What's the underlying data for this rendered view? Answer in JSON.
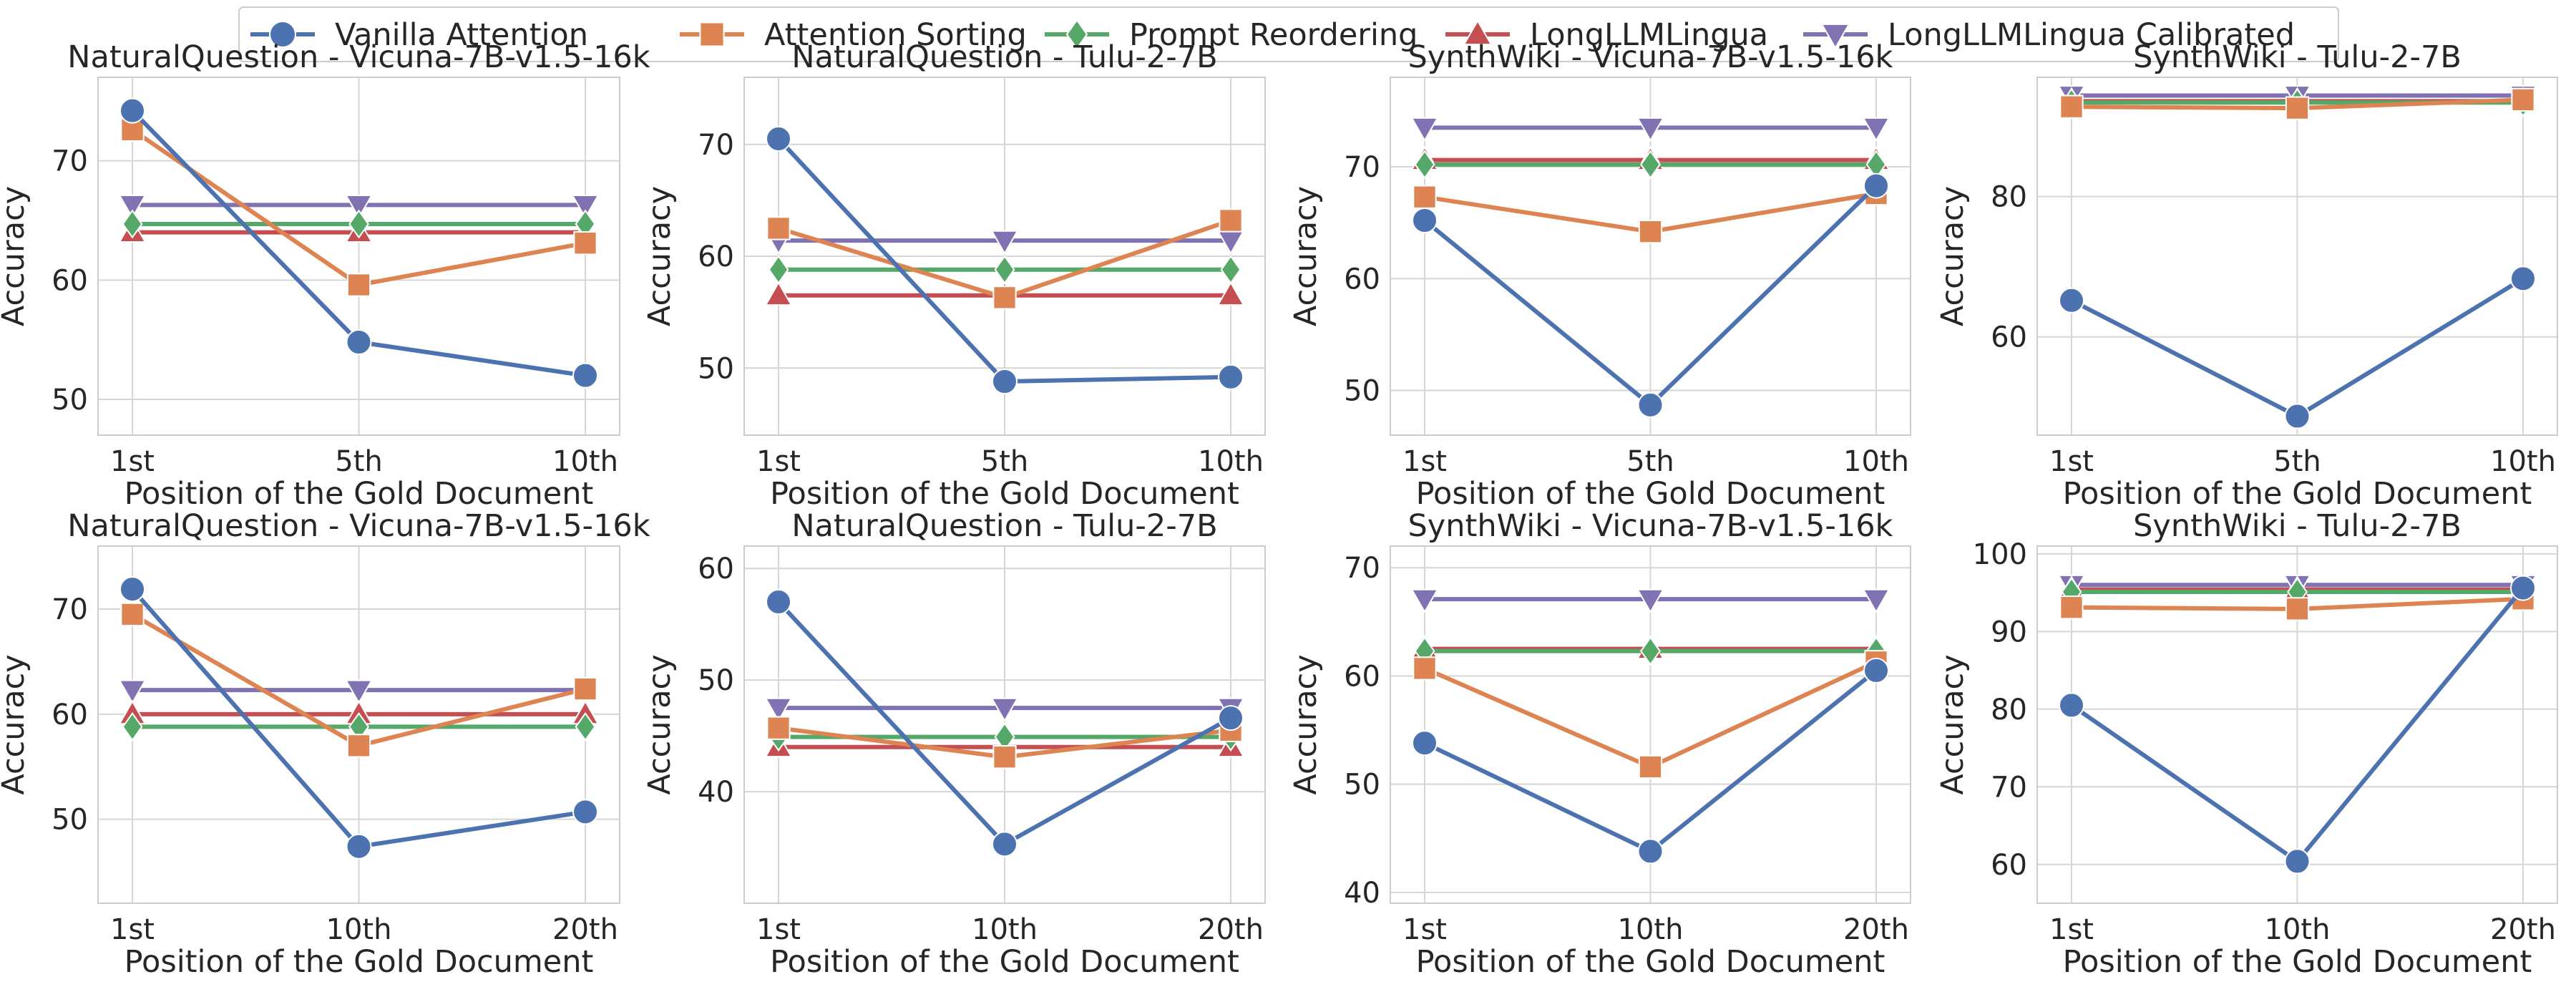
{
  "colors": {
    "Vanilla Attention": "#4c72b0",
    "Attention Sorting": "#dd8452",
    "Prompt Reordering": "#55a868",
    "LongLLMLingua": "#c44e52",
    "LongLLMLingua Calibrated": "#8172b3"
  },
  "legend": [
    {
      "label": "Vanilla Attention",
      "marker": "circle"
    },
    {
      "label": "Attention Sorting",
      "marker": "square"
    },
    {
      "label": "Prompt Reordering",
      "marker": "diamond"
    },
    {
      "label": "LongLLMLingua",
      "marker": "triangle-up"
    },
    {
      "label": "LongLLMLingua Calibrated",
      "marker": "triangle-down"
    }
  ],
  "chart_data": [
    {
      "type": "line",
      "title": "NaturalQuestion - Vicuna-7B-v1.5-16k",
      "xlabel": "Position of the Gold Document",
      "ylabel": "Accuracy",
      "categories": [
        "1st",
        "5th",
        "10th"
      ],
      "ylim": [
        47,
        77
      ],
      "yticks": [
        50,
        60,
        70
      ],
      "series": [
        {
          "name": "Vanilla Attention",
          "values": [
            74.2,
            54.8,
            52.0
          ]
        },
        {
          "name": "Attention Sorting",
          "values": [
            72.6,
            59.6,
            63.1
          ]
        },
        {
          "name": "Prompt Reordering",
          "values": [
            64.7,
            64.7,
            64.7
          ]
        },
        {
          "name": "LongLLMLingua",
          "values": [
            64.0,
            64.0,
            64.0
          ]
        },
        {
          "name": "LongLLMLingua Calibrated",
          "values": [
            66.3,
            66.3,
            66.3
          ]
        }
      ]
    },
    {
      "type": "line",
      "title": "NaturalQuestion - Tulu-2-7B",
      "xlabel": "Position of the Gold Document",
      "ylabel": "Accuracy",
      "categories": [
        "1st",
        "5th",
        "10th"
      ],
      "ylim": [
        44,
        76
      ],
      "yticks": [
        50,
        60,
        70
      ],
      "series": [
        {
          "name": "Vanilla Attention",
          "values": [
            70.5,
            48.8,
            49.2
          ]
        },
        {
          "name": "Attention Sorting",
          "values": [
            62.5,
            56.3,
            63.2
          ]
        },
        {
          "name": "Prompt Reordering",
          "values": [
            58.8,
            58.8,
            58.8
          ]
        },
        {
          "name": "LongLLMLingua",
          "values": [
            56.5,
            56.5,
            56.5
          ]
        },
        {
          "name": "LongLLMLingua Calibrated",
          "values": [
            61.4,
            61.4,
            61.4
          ]
        }
      ]
    },
    {
      "type": "line",
      "title": "SynthWiki - Vicuna-7B-v1.5-16k",
      "xlabel": "Position of the Gold Document",
      "ylabel": "Accuracy",
      "categories": [
        "1st",
        "5th",
        "10th"
      ],
      "ylim": [
        46,
        78
      ],
      "yticks": [
        50,
        60,
        70
      ],
      "series": [
        {
          "name": "Vanilla Attention",
          "values": [
            65.2,
            48.7,
            68.3
          ]
        },
        {
          "name": "Attention Sorting",
          "values": [
            67.3,
            64.2,
            67.6
          ]
        },
        {
          "name": "Prompt Reordering",
          "values": [
            70.2,
            70.2,
            70.2
          ]
        },
        {
          "name": "LongLLMLingua",
          "values": [
            70.6,
            70.6,
            70.6
          ]
        },
        {
          "name": "LongLLMLingua Calibrated",
          "values": [
            73.5,
            73.5,
            73.5
          ]
        }
      ]
    },
    {
      "type": "line",
      "title": "SynthWiki - Tulu-2-7B",
      "xlabel": "Position of the Gold Document",
      "ylabel": "Accuracy",
      "categories": [
        "1st",
        "5th",
        "10th"
      ],
      "ylim": [
        46,
        97
      ],
      "yticks": [
        60,
        80
      ],
      "series": [
        {
          "name": "Vanilla Attention",
          "values": [
            65.2,
            48.7,
            68.3
          ]
        },
        {
          "name": "Attention Sorting",
          "values": [
            92.8,
            92.6,
            93.8
          ]
        },
        {
          "name": "Prompt Reordering",
          "values": [
            93.4,
            93.4,
            93.4
          ]
        },
        {
          "name": "LongLLMLingua",
          "values": [
            93.6,
            93.6,
            93.6
          ]
        },
        {
          "name": "LongLLMLingua Calibrated",
          "values": [
            94.4,
            94.4,
            94.4
          ]
        }
      ]
    },
    {
      "type": "line",
      "title": "NaturalQuestion - Vicuna-7B-v1.5-16k",
      "xlabel": "Position of the Gold Document",
      "ylabel": "Accuracy",
      "categories": [
        "1st",
        "10th",
        "20th"
      ],
      "ylim": [
        42,
        76
      ],
      "yticks": [
        50,
        60,
        70
      ],
      "series": [
        {
          "name": "Vanilla Attention",
          "values": [
            71.9,
            47.4,
            50.7
          ]
        },
        {
          "name": "Attention Sorting",
          "values": [
            69.5,
            57.0,
            62.4
          ]
        },
        {
          "name": "Prompt Reordering",
          "values": [
            58.8,
            58.8,
            58.8
          ]
        },
        {
          "name": "LongLLMLingua",
          "values": [
            60.0,
            60.0,
            60.0
          ]
        },
        {
          "name": "LongLLMLingua Calibrated",
          "values": [
            62.3,
            62.3,
            62.3
          ]
        }
      ]
    },
    {
      "type": "line",
      "title": "NaturalQuestion - Tulu-2-7B",
      "xlabel": "Position of the Gold Document",
      "ylabel": "Accuracy",
      "categories": [
        "1st",
        "10th",
        "20th"
      ],
      "ylim": [
        30,
        62
      ],
      "yticks": [
        40,
        50,
        60
      ],
      "series": [
        {
          "name": "Vanilla Attention",
          "values": [
            57.0,
            35.3,
            46.6
          ]
        },
        {
          "name": "Attention Sorting",
          "values": [
            45.7,
            43.1,
            45.5
          ]
        },
        {
          "name": "Prompt Reordering",
          "values": [
            44.9,
            44.9,
            44.9
          ]
        },
        {
          "name": "LongLLMLingua",
          "values": [
            44.0,
            44.0,
            44.0
          ]
        },
        {
          "name": "LongLLMLingua Calibrated",
          "values": [
            47.5,
            47.5,
            47.5
          ]
        }
      ]
    },
    {
      "type": "line",
      "title": "SynthWiki - Vicuna-7B-v1.5-16k",
      "xlabel": "Position of the Gold Document",
      "ylabel": "Accuracy",
      "categories": [
        "1st",
        "10th",
        "20th"
      ],
      "ylim": [
        39,
        72
      ],
      "yticks": [
        40,
        50,
        60,
        70
      ],
      "series": [
        {
          "name": "Vanilla Attention",
          "values": [
            53.8,
            43.8,
            60.5
          ]
        },
        {
          "name": "Attention Sorting",
          "values": [
            60.7,
            51.6,
            61.3
          ]
        },
        {
          "name": "Prompt Reordering",
          "values": [
            62.3,
            62.3,
            62.3
          ]
        },
        {
          "name": "LongLLMLingua",
          "values": [
            62.5,
            62.5,
            62.5
          ]
        },
        {
          "name": "LongLLMLingua Calibrated",
          "values": [
            67.1,
            67.1,
            67.1
          ]
        }
      ]
    },
    {
      "type": "line",
      "title": "SynthWiki - Tulu-2-7B",
      "xlabel": "Position of the Gold Document",
      "ylabel": "Accuracy",
      "categories": [
        "1st",
        "10th",
        "20th"
      ],
      "ylim": [
        55,
        101
      ],
      "yticks": [
        60,
        70,
        80,
        90,
        100
      ],
      "series": [
        {
          "name": "Vanilla Attention",
          "values": [
            80.5,
            60.4,
            95.6
          ]
        },
        {
          "name": "Attention Sorting",
          "values": [
            93.1,
            92.9,
            94.2
          ]
        },
        {
          "name": "Prompt Reordering",
          "values": [
            95.1,
            95.1,
            95.1
          ]
        },
        {
          "name": "LongLLMLingua",
          "values": [
            95.4,
            95.4,
            95.4
          ]
        },
        {
          "name": "LongLLMLingua Calibrated",
          "values": [
            96.0,
            96.0,
            96.0
          ]
        }
      ]
    }
  ]
}
